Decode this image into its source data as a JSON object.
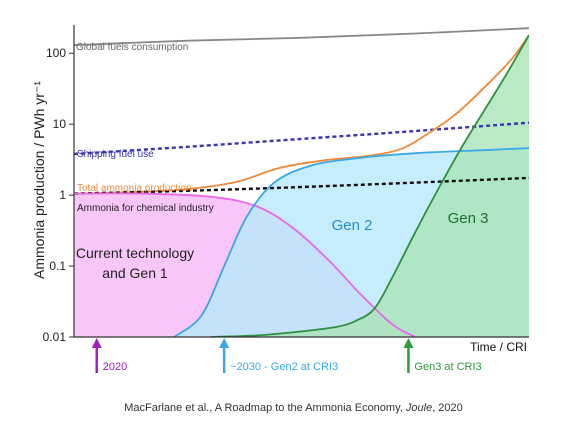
{
  "chart_data": {
    "type": "area",
    "xlabel": "Time / CRI",
    "ylabel": "Ammonia production / PWh yr⁻¹",
    "yscale": "log",
    "ylim": [
      0.01,
      250
    ],
    "xlim": [
      0,
      1
    ],
    "grid": false,
    "y_ticks": [
      {
        "value": 100,
        "label": "100"
      },
      {
        "value": 10,
        "label": "10"
      },
      {
        "value": 1,
        "label": "1"
      },
      {
        "value": 0.1,
        "label": "0.1"
      },
      {
        "value": 0.01,
        "label": "0.01"
      }
    ],
    "series": [
      {
        "name": "Global fuels consumption",
        "color": "#888888",
        "style": "solid",
        "x": [
          0,
          0.25,
          0.5,
          0.75,
          1.0
        ],
        "y": [
          130,
          150,
          165,
          190,
          225
        ]
      },
      {
        "name": "Shipping fuel use",
        "color": "#3b35b0",
        "style": "dashed",
        "x": [
          0,
          0.25,
          0.5,
          0.75,
          1.0
        ],
        "y": [
          3.8,
          4.8,
          6.2,
          8.0,
          10.5
        ]
      },
      {
        "name": "Total ammonia production",
        "color": "#f0883a",
        "style": "solid",
        "x": [
          0,
          0.2,
          0.35,
          0.45,
          0.55,
          0.65,
          0.72,
          0.78,
          0.84,
          0.9,
          0.96,
          1.0
        ],
        "y": [
          1.05,
          1.15,
          1.5,
          2.4,
          3.1,
          3.6,
          4.5,
          7.5,
          14,
          32,
          80,
          180
        ]
      },
      {
        "name": "Ammonia for chemical industry",
        "color": "#111111",
        "style": "dashed",
        "x": [
          0,
          0.25,
          0.5,
          0.75,
          1.0
        ],
        "y": [
          1.05,
          1.15,
          1.3,
          1.5,
          1.75
        ]
      },
      {
        "name": "Current technology and Gen 1",
        "color": "#e868e8",
        "fill": "#f7b8f7",
        "x": [
          0,
          0.15,
          0.3,
          0.4,
          0.48,
          0.56,
          0.63,
          0.7,
          0.75
        ],
        "y": [
          1.05,
          1.05,
          0.95,
          0.7,
          0.35,
          0.12,
          0.04,
          0.015,
          0.01
        ]
      },
      {
        "name": "Gen 2",
        "color": "#3aa8e6",
        "fill": "#b8e8fb",
        "x": [
          0.22,
          0.28,
          0.33,
          0.38,
          0.44,
          0.52,
          0.62,
          0.75,
          0.9,
          1.0
        ],
        "y": [
          0.01,
          0.02,
          0.1,
          0.5,
          1.5,
          2.6,
          3.3,
          3.9,
          4.3,
          4.6
        ]
      },
      {
        "name": "Gen 3",
        "color": "#2e8f3e",
        "fill": "#a9e3b6",
        "x": [
          0.3,
          0.4,
          0.5,
          0.58,
          0.62,
          0.66,
          0.7,
          0.75,
          0.8,
          0.85,
          0.9,
          0.95,
          1.0
        ],
        "y": [
          0.01,
          0.0105,
          0.012,
          0.014,
          0.017,
          0.025,
          0.07,
          0.3,
          1.2,
          4.5,
          15,
          50,
          180
        ]
      }
    ],
    "line_labels": {
      "global": "Global fuels consumption",
      "shipping": "Shipping fuel use",
      "total": "Total ammonia production",
      "chemical": "Ammonia for chemical industry"
    },
    "region_labels": {
      "gen1_line1": "Current technology",
      "gen1_line2": "and Gen 1",
      "gen2": "Gen 2",
      "gen3": "Gen 3"
    },
    "markers": [
      {
        "x": 0.05,
        "label": "2020",
        "color": "#a020c0"
      },
      {
        "x": 0.33,
        "label": "~2030 - Gen2 at CRI3",
        "color": "#3aa8e6"
      },
      {
        "x": 0.735,
        "label": "Gen3 at CRI3",
        "color": "#2e9a3c"
      }
    ]
  },
  "caption": {
    "authors": "MacFarlane et al., A Roadmap to the Ammonia Economy, ",
    "journal": "Joule",
    "year": ", 2020"
  }
}
